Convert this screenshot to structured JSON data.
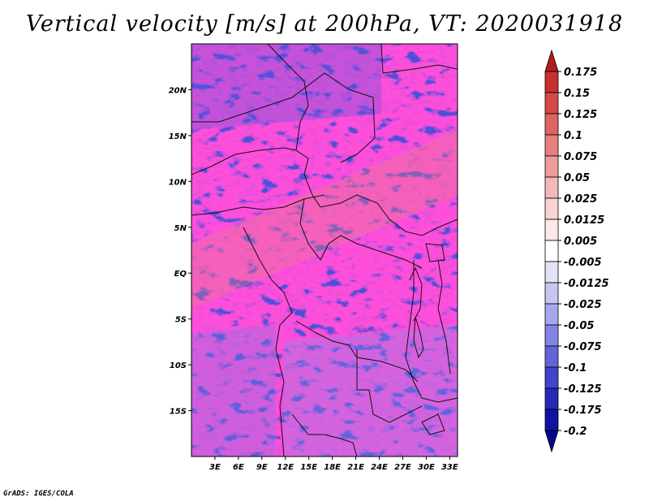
{
  "title": "Vertical velocity [m/s] at 200hPa, VT: 2020031918",
  "credit": "GrADS: IGES/COLA",
  "lat_labels": [
    "20N",
    "15N",
    "10N",
    "5N",
    "EQ",
    "5S",
    "10S",
    "15S"
  ],
  "lat_values": [
    20,
    15,
    10,
    5,
    0,
    -5,
    -10,
    -15
  ],
  "lon_labels": [
    "3E",
    "6E",
    "9E",
    "12E",
    "15E",
    "18E",
    "21E",
    "24E",
    "27E",
    "30E",
    "33E"
  ],
  "lon_values": [
    3,
    6,
    9,
    12,
    15,
    18,
    21,
    24,
    27,
    30,
    33
  ],
  "extent": {
    "lon_min": 0,
    "lon_max": 34,
    "lat_min": -20,
    "lat_max": 25
  },
  "colorbar": {
    "labels": [
      "0.175",
      "0.15",
      "0.125",
      "0.1",
      "0.075",
      "0.05",
      "0.025",
      "0.0125",
      "0.005",
      "-0.005",
      "-0.0125",
      "-0.025",
      "-0.05",
      "-0.075",
      "-0.1",
      "-0.125",
      "-0.175",
      "-0.2"
    ],
    "colors": [
      "#b51c1c",
      "#c83030",
      "#d54848",
      "#de6464",
      "#e77f7f",
      "#ee9c9c",
      "#f4b8b8",
      "#f8d3d3",
      "#fbe8e8",
      "#ffffff",
      "#e2e2f8",
      "#c6c6f2",
      "#a6a6ec",
      "#8484e4",
      "#6363da",
      "#4343cc",
      "#2828b8",
      "#1212a0",
      "#08088a"
    ]
  }
}
